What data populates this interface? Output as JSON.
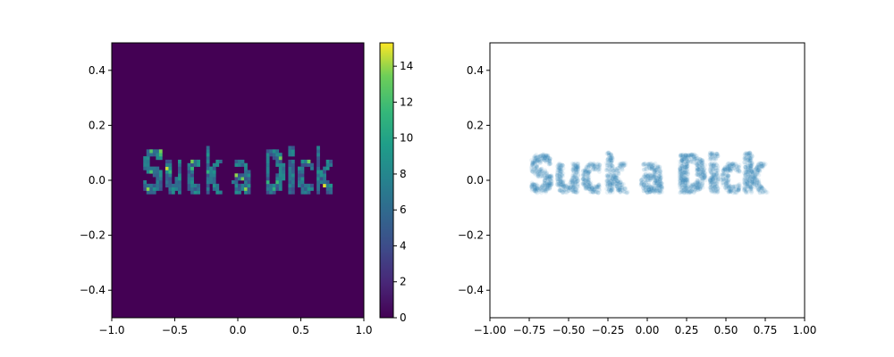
{
  "chart_data": [
    {
      "type": "heatmap",
      "title": "",
      "xlabel": "",
      "ylabel": "",
      "xlim": [
        -1.0,
        1.0
      ],
      "ylim": [
        -0.5,
        0.5
      ],
      "xticks": [
        -1.0,
        -0.5,
        0.0,
        0.5,
        1.0
      ],
      "xtick_labels": [
        "−1.0",
        "−0.5",
        "0.0",
        "0.5",
        "1.0"
      ],
      "yticks": [
        -0.4,
        -0.2,
        0.0,
        0.2,
        0.4
      ],
      "ytick_labels": [
        "−0.4",
        "−0.2",
        "0.0",
        "0.2",
        "0.4"
      ],
      "colormap": "viridis",
      "text_in_data": "Suck a Dick",
      "colorbar": {
        "range": [
          0,
          15.3
        ],
        "ticks": [
          0,
          2,
          4,
          6,
          8,
          10,
          12,
          14
        ],
        "tick_labels": [
          "0",
          "2",
          "4",
          "6",
          "8",
          "10",
          "12",
          "14"
        ]
      }
    },
    {
      "type": "scatter",
      "title": "",
      "xlabel": "",
      "ylabel": "",
      "xlim": [
        -1.0,
        1.0
      ],
      "ylim": [
        -0.5,
        0.5
      ],
      "xticks": [
        -1.0,
        -0.75,
        -0.5,
        -0.25,
        0.0,
        0.25,
        0.5,
        0.75,
        1.0
      ],
      "xtick_labels": [
        "−1.00",
        "−0.75",
        "−0.50",
        "−0.25",
        "0.00",
        "0.25",
        "0.50",
        "0.75",
        "1.00"
      ],
      "yticks": [
        -0.4,
        -0.2,
        0.0,
        0.2,
        0.4
      ],
      "ytick_labels": [
        "−0.4",
        "−0.2",
        "0.0",
        "0.2",
        "0.4"
      ],
      "point_color": "#1f77b4",
      "text_in_data": "Suck a Dick"
    }
  ]
}
